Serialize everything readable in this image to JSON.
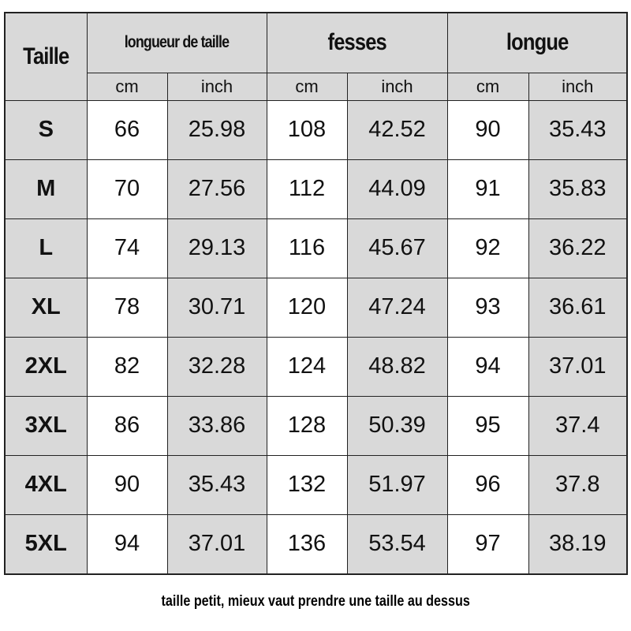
{
  "header": {
    "size_label": "Taille",
    "groups": [
      "longueur de taille",
      "fesses",
      "longue"
    ],
    "units": [
      "cm",
      "inch",
      "cm",
      "inch",
      "cm",
      "inch"
    ]
  },
  "rows": [
    [
      "S",
      "66",
      "25.98",
      "108",
      "42.52",
      "90",
      "35.43"
    ],
    [
      "M",
      "70",
      "27.56",
      "112",
      "44.09",
      "91",
      "35.83"
    ],
    [
      "L",
      "74",
      "29.13",
      "116",
      "45.67",
      "92",
      "36.22"
    ],
    [
      "XL",
      "78",
      "30.71",
      "120",
      "47.24",
      "93",
      "36.61"
    ],
    [
      "2XL",
      "82",
      "32.28",
      "124",
      "48.82",
      "94",
      "37.01"
    ],
    [
      "3XL",
      "86",
      "33.86",
      "128",
      "50.39",
      "95",
      "37.4"
    ],
    [
      "4XL",
      "90",
      "35.43",
      "132",
      "51.97",
      "96",
      "37.8"
    ],
    [
      "5XL",
      "94",
      "37.01",
      "136",
      "53.54",
      "97",
      "38.19"
    ]
  ],
  "note": "taille petit, mieux vaut prendre une taille au dessus",
  "colors": {
    "header_bg": "#d9d9d9",
    "cell_bg": "#ffffff",
    "border": "#222222"
  }
}
